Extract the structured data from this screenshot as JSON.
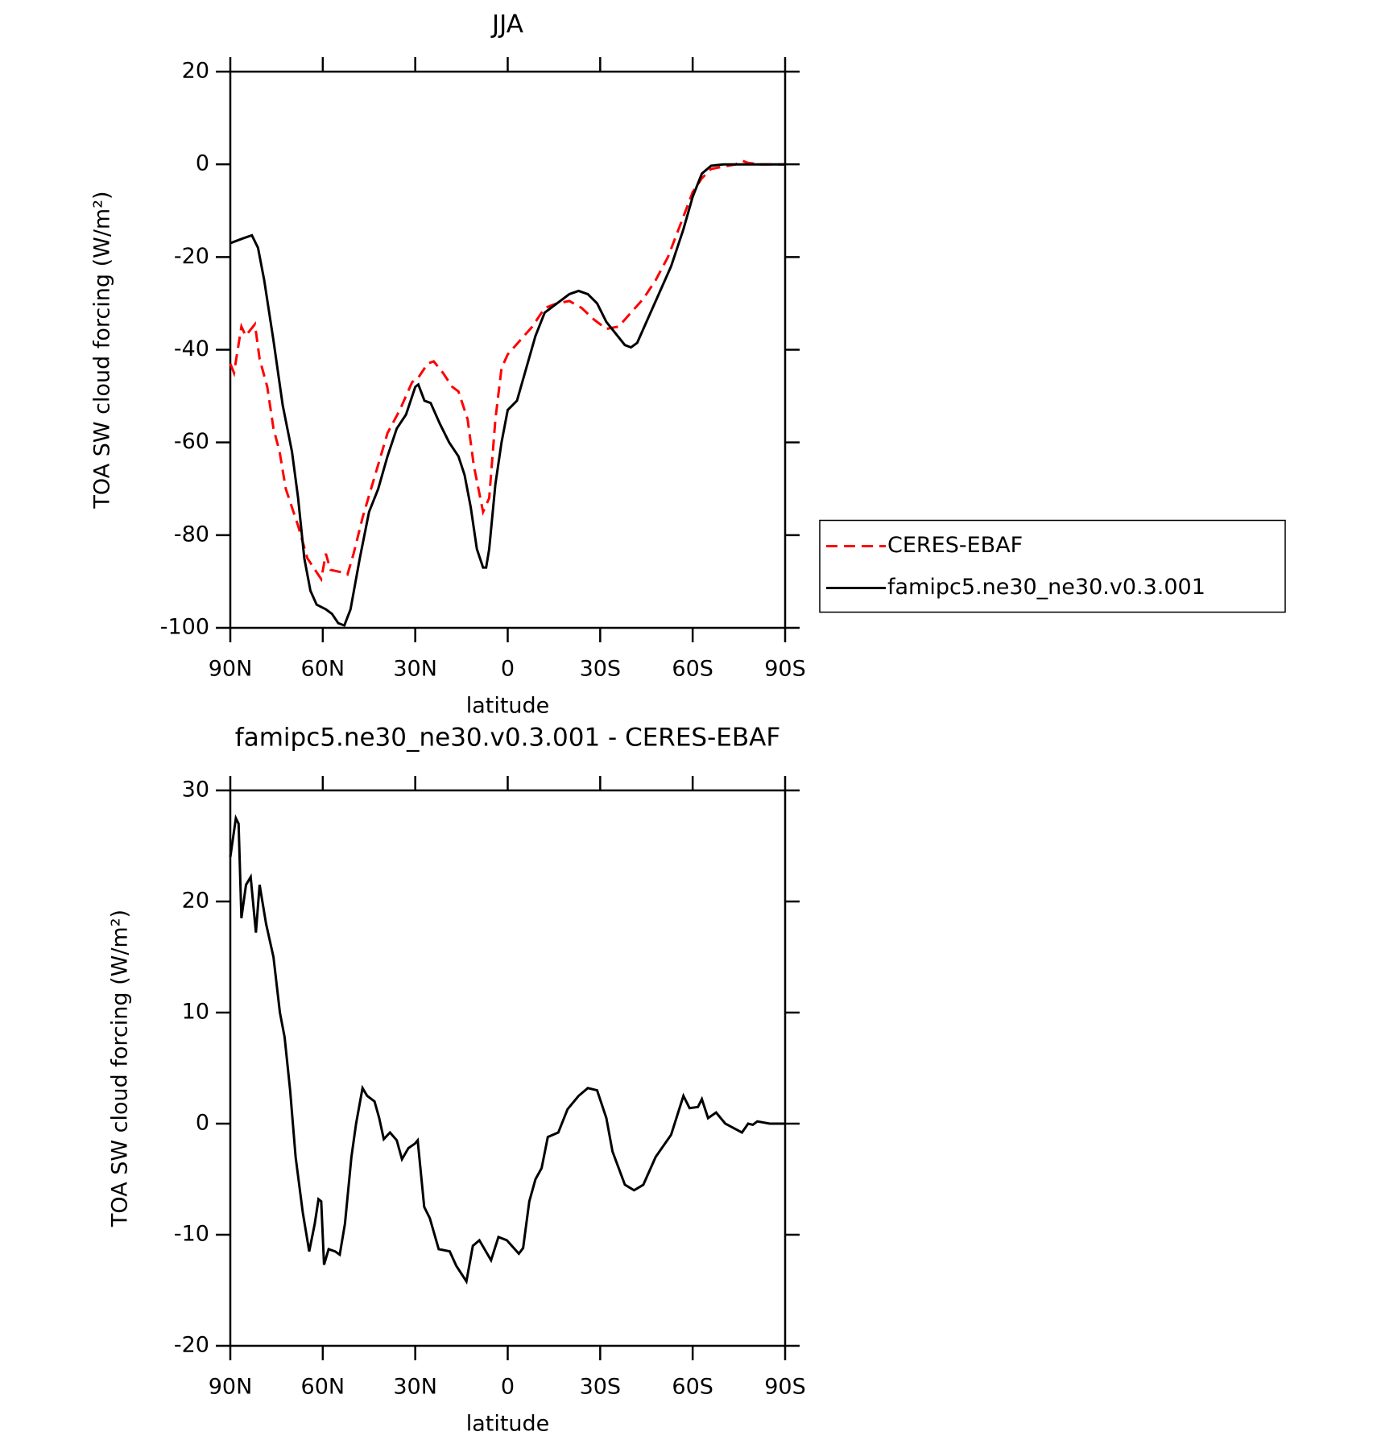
{
  "chart_data": [
    {
      "type": "line",
      "title": "JJA",
      "xlabel": "latitude",
      "ylabel": "TOA SW cloud forcing (W/m²)",
      "xlim": [
        90,
        -90
      ],
      "xticks": [
        {
          "value": 90,
          "label": "90N"
        },
        {
          "value": 60,
          "label": "60N"
        },
        {
          "value": 30,
          "label": "30N"
        },
        0,
        {
          "value": -30,
          "label": "30S"
        },
        {
          "value": -60,
          "label": "60S"
        },
        {
          "value": -90,
          "label": "90S"
        }
      ],
      "ylim": [
        -100,
        20
      ],
      "yticks": [
        -100,
        -80,
        -60,
        -40,
        -20,
        0,
        20
      ],
      "legend": "outside right",
      "series": [
        {
          "name": "CERES-EBAF",
          "color": "#ff0000",
          "dash": true,
          "x": [
            90,
            88.8,
            86.4,
            85,
            82,
            80.5,
            78,
            76,
            74,
            72,
            68,
            65,
            62,
            60.5,
            59,
            57.5,
            54,
            52,
            50,
            47,
            43,
            39,
            35,
            31,
            29,
            26,
            24,
            21,
            18,
            16,
            13,
            11,
            8,
            6,
            4,
            2,
            0,
            -4,
            -8,
            -12,
            -16,
            -20,
            -24,
            -28,
            -32,
            -36,
            -40,
            -44,
            -48,
            -52,
            -56,
            -60,
            -63,
            -66,
            -70,
            -74,
            -76,
            -78,
            -82,
            -86,
            -90
          ],
          "values": [
            -43,
            -45,
            -35,
            -37,
            -34.5,
            -42,
            -48,
            -57,
            -62,
            -70,
            -78,
            -85,
            -88,
            -89.5,
            -84,
            -87.5,
            -88,
            -88.5,
            -84,
            -76,
            -67,
            -58,
            -53,
            -47,
            -46,
            -43,
            -42.5,
            -45,
            -48,
            -49,
            -55,
            -65,
            -75,
            -72,
            -55,
            -44,
            -41,
            -38,
            -35,
            -31,
            -30,
            -29.5,
            -31,
            -33.5,
            -35.5,
            -35,
            -32,
            -29,
            -25,
            -20,
            -13,
            -6,
            -3,
            -1,
            -0.5,
            0,
            0.8,
            0.3,
            0,
            0,
            0
          ]
        },
        {
          "name": "famipc5.ne30_ne30.v0.3.001",
          "color": "#000000",
          "dash": false,
          "x": [
            90,
            88,
            86,
            83,
            81,
            79,
            76,
            73,
            70,
            68,
            66,
            64,
            62,
            59,
            57,
            55,
            53,
            51,
            48,
            45,
            42,
            39,
            36,
            33,
            30,
            29,
            27,
            25,
            22,
            19,
            16,
            14,
            12,
            10,
            8,
            7,
            6,
            4,
            2,
            0,
            -3,
            -6,
            -9,
            -12,
            -16,
            -20,
            -23,
            -26,
            -29,
            -32,
            -35,
            -38,
            -40,
            -42,
            -45,
            -49,
            -53,
            -57,
            -60,
            -63,
            -66,
            -70,
            -80,
            -90
          ],
          "values": [
            -17,
            -16.5,
            -16,
            -15.3,
            -18,
            -25,
            -38,
            -52,
            -62,
            -72,
            -85,
            -92,
            -95,
            -96,
            -97,
            -99,
            -99.5,
            -96,
            -85,
            -75,
            -70,
            -63,
            -57,
            -54,
            -48,
            -47.5,
            -51,
            -51.5,
            -56,
            -60,
            -63,
            -67,
            -74,
            -83,
            -87,
            -87,
            -83,
            -69,
            -60,
            -53,
            -51,
            -44,
            -37,
            -32,
            -30,
            -28,
            -27.3,
            -28,
            -30,
            -34,
            -36.5,
            -39,
            -39.5,
            -38.5,
            -34,
            -28,
            -22,
            -14,
            -7,
            -2,
            -0.3,
            0,
            0,
            0
          ]
        }
      ]
    },
    {
      "type": "line",
      "title": "famipc5.ne30_ne30.v0.3.001 - CERES-EBAF",
      "xlabel": "latitude",
      "ylabel": "TOA SW cloud forcing (W/m²)",
      "xlim": [
        90,
        -90
      ],
      "xticks": [
        {
          "value": 90,
          "label": "90N"
        },
        {
          "value": 60,
          "label": "60N"
        },
        {
          "value": 30,
          "label": "30N"
        },
        0,
        {
          "value": -30,
          "label": "30S"
        },
        {
          "value": -60,
          "label": "60S"
        },
        {
          "value": -90,
          "label": "90S"
        }
      ],
      "ylim": [
        -20,
        30
      ],
      "yticks": [
        -20,
        -10,
        0,
        10,
        20,
        30
      ],
      "series": [
        {
          "color": "#000000",
          "dash": false,
          "x": [
            90,
            88.2,
            87.3,
            86.4,
            84.9,
            83.4,
            81.7,
            80.5,
            78.4,
            76,
            73.9,
            72.4,
            70.6,
            68.8,
            66.5,
            64.4,
            62.6,
            61.4,
            60.5,
            59.6,
            58.1,
            56,
            54.5,
            52.8,
            50.7,
            49.2,
            47.1,
            45.6,
            43.2,
            41.7,
            40.2,
            38.2,
            36,
            34.3,
            32.2,
            30.1,
            29.2,
            27.1,
            25.3,
            22.4,
            18.8,
            16.7,
            13.4,
            11.3,
            9.2,
            5.4,
            3,
            0.3,
            -3.6,
            -5,
            -7,
            -9,
            -11,
            -13,
            -16.4,
            -19.4,
            -23,
            -26,
            -29,
            -32,
            -34,
            -38,
            -41,
            -44,
            -48,
            -53,
            -57,
            -59,
            -61.7,
            -63,
            -65,
            -67.6,
            -70.6,
            -76,
            -78,
            -79.5,
            -81,
            -85,
            -90
          ],
          "values": [
            24,
            27.5,
            27,
            18.5,
            21.5,
            22.2,
            17.2,
            21.5,
            18,
            15,
            10,
            7.8,
            3,
            -3,
            -8,
            -11.5,
            -9,
            -6.8,
            -7,
            -12.7,
            -11.3,
            -11.5,
            -11.8,
            -9,
            -3,
            0,
            3.2,
            2.5,
            2,
            0.5,
            -1.4,
            -0.8,
            -1.5,
            -3.2,
            -2.2,
            -1.8,
            -1.5,
            -7.5,
            -8.5,
            -11.3,
            -11.5,
            -12.8,
            -14.2,
            -11,
            -10.5,
            -12.3,
            -10.2,
            -10.5,
            -11.7,
            -11.2,
            -7,
            -5,
            -4,
            -1.2,
            -0.8,
            1.3,
            2.5,
            3.2,
            3,
            0.5,
            -2.5,
            -5.5,
            -6,
            -5.5,
            -3,
            -1,
            2.5,
            1.4,
            1.5,
            2.2,
            0.5,
            1,
            0,
            -0.8,
            0,
            -0.1,
            0.2,
            0,
            0
          ]
        }
      ]
    }
  ]
}
